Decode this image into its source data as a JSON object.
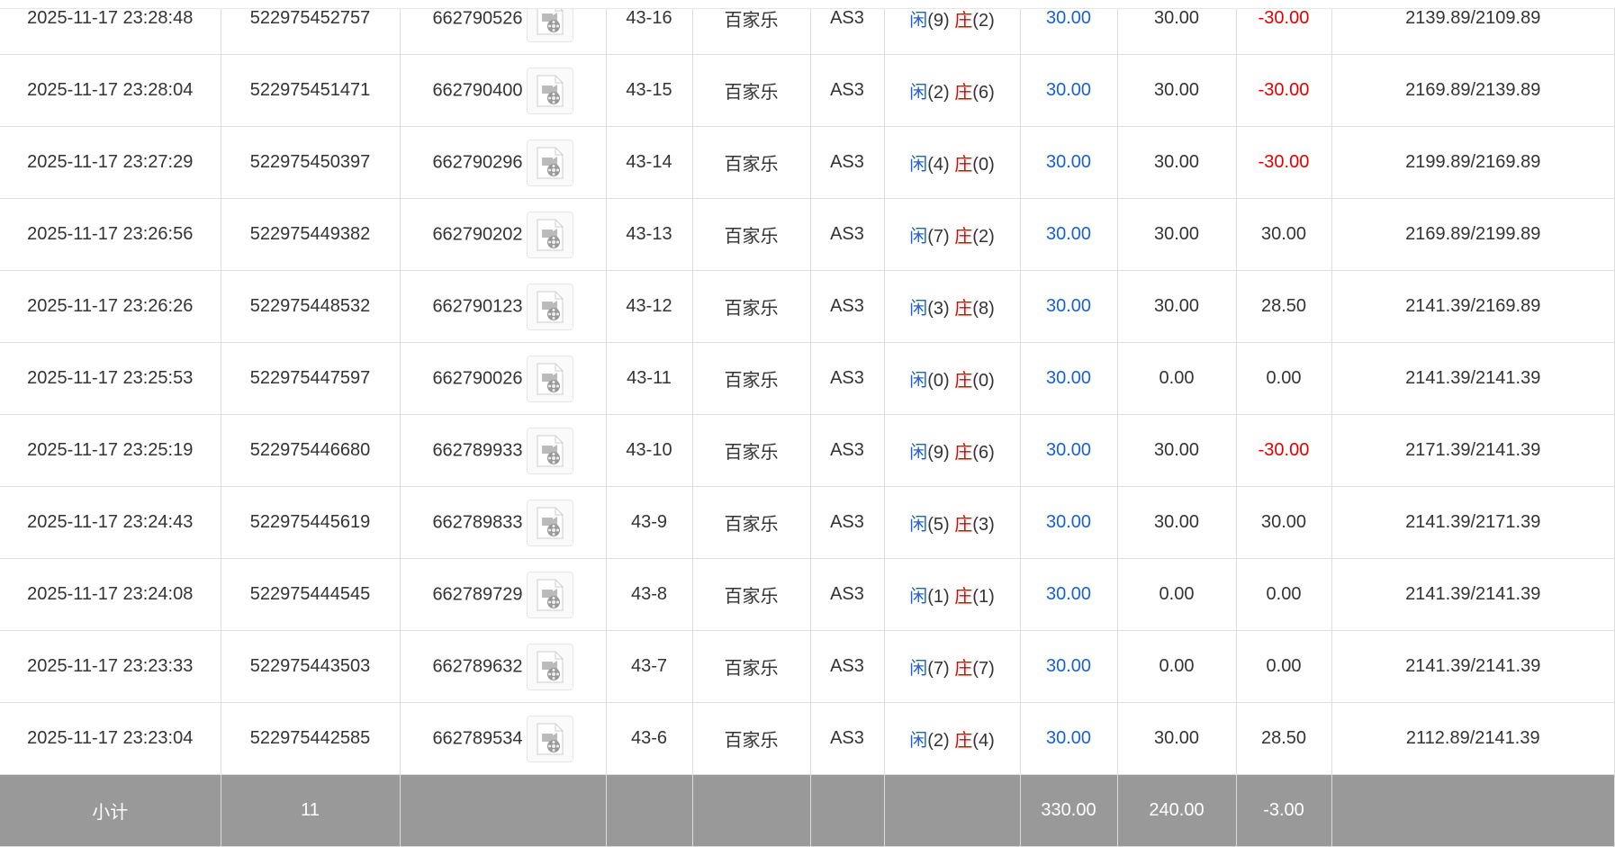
{
  "rows": [
    {
      "time": "2025-11-17 23:28:48",
      "bet_id": "522975452757",
      "round_id": "662790526",
      "shoe": "43-16",
      "game": "百家乐",
      "table": "AS3",
      "player_label": "闲",
      "player_score": "(9)",
      "banker_label": "庄",
      "banker_score": "(2)",
      "bet": "30.00",
      "valid": "30.00",
      "winloss": "-30.00",
      "balance": "2139.89/2109.89"
    },
    {
      "time": "2025-11-17 23:28:04",
      "bet_id": "522975451471",
      "round_id": "662790400",
      "shoe": "43-15",
      "game": "百家乐",
      "table": "AS3",
      "player_label": "闲",
      "player_score": "(2)",
      "banker_label": "庄",
      "banker_score": "(6)",
      "bet": "30.00",
      "valid": "30.00",
      "winloss": "-30.00",
      "balance": "2169.89/2139.89"
    },
    {
      "time": "2025-11-17 23:27:29",
      "bet_id": "522975450397",
      "round_id": "662790296",
      "shoe": "43-14",
      "game": "百家乐",
      "table": "AS3",
      "player_label": "闲",
      "player_score": "(4)",
      "banker_label": "庄",
      "banker_score": "(0)",
      "bet": "30.00",
      "valid": "30.00",
      "winloss": "-30.00",
      "balance": "2199.89/2169.89"
    },
    {
      "time": "2025-11-17 23:26:56",
      "bet_id": "522975449382",
      "round_id": "662790202",
      "shoe": "43-13",
      "game": "百家乐",
      "table": "AS3",
      "player_label": "闲",
      "player_score": "(7)",
      "banker_label": "庄",
      "banker_score": "(2)",
      "bet": "30.00",
      "valid": "30.00",
      "winloss": "30.00",
      "balance": "2169.89/2199.89"
    },
    {
      "time": "2025-11-17 23:26:26",
      "bet_id": "522975448532",
      "round_id": "662790123",
      "shoe": "43-12",
      "game": "百家乐",
      "table": "AS3",
      "player_label": "闲",
      "player_score": "(3)",
      "banker_label": "庄",
      "banker_score": "(8)",
      "bet": "30.00",
      "valid": "30.00",
      "winloss": "28.50",
      "balance": "2141.39/2169.89"
    },
    {
      "time": "2025-11-17 23:25:53",
      "bet_id": "522975447597",
      "round_id": "662790026",
      "shoe": "43-11",
      "game": "百家乐",
      "table": "AS3",
      "player_label": "闲",
      "player_score": "(0)",
      "banker_label": "庄",
      "banker_score": "(0)",
      "bet": "30.00",
      "valid": "0.00",
      "winloss": "0.00",
      "balance": "2141.39/2141.39"
    },
    {
      "time": "2025-11-17 23:25:19",
      "bet_id": "522975446680",
      "round_id": "662789933",
      "shoe": "43-10",
      "game": "百家乐",
      "table": "AS3",
      "player_label": "闲",
      "player_score": "(9)",
      "banker_label": "庄",
      "banker_score": "(6)",
      "bet": "30.00",
      "valid": "30.00",
      "winloss": "-30.00",
      "balance": "2171.39/2141.39"
    },
    {
      "time": "2025-11-17 23:24:43",
      "bet_id": "522975445619",
      "round_id": "662789833",
      "shoe": "43-9",
      "game": "百家乐",
      "table": "AS3",
      "player_label": "闲",
      "player_score": "(5)",
      "banker_label": "庄",
      "banker_score": "(3)",
      "bet": "30.00",
      "valid": "30.00",
      "winloss": "30.00",
      "balance": "2141.39/2171.39"
    },
    {
      "time": "2025-11-17 23:24:08",
      "bet_id": "522975444545",
      "round_id": "662789729",
      "shoe": "43-8",
      "game": "百家乐",
      "table": "AS3",
      "player_label": "闲",
      "player_score": "(1)",
      "banker_label": "庄",
      "banker_score": "(1)",
      "bet": "30.00",
      "valid": "0.00",
      "winloss": "0.00",
      "balance": "2141.39/2141.39"
    },
    {
      "time": "2025-11-17 23:23:33",
      "bet_id": "522975443503",
      "round_id": "662789632",
      "shoe": "43-7",
      "game": "百家乐",
      "table": "AS3",
      "player_label": "闲",
      "player_score": "(7)",
      "banker_label": "庄",
      "banker_score": "(7)",
      "bet": "30.00",
      "valid": "0.00",
      "winloss": "0.00",
      "balance": "2141.39/2141.39"
    },
    {
      "time": "2025-11-17 23:23:04",
      "bet_id": "522975442585",
      "round_id": "662789534",
      "shoe": "43-6",
      "game": "百家乐",
      "table": "AS3",
      "player_label": "闲",
      "player_score": "(2)",
      "banker_label": "庄",
      "banker_score": "(4)",
      "bet": "30.00",
      "valid": "30.00",
      "winloss": "28.50",
      "balance": "2112.89/2141.39"
    }
  ],
  "summary": {
    "label": "小计",
    "count": "11",
    "bet": "330.00",
    "valid": "240.00",
    "winloss": "-3.00"
  },
  "colors": {
    "player": "#1a5fd6",
    "banker": "#e00000",
    "negative": "#e00000",
    "summary_bg": "#999999"
  },
  "icons": {
    "replay": "video-file-icon"
  }
}
